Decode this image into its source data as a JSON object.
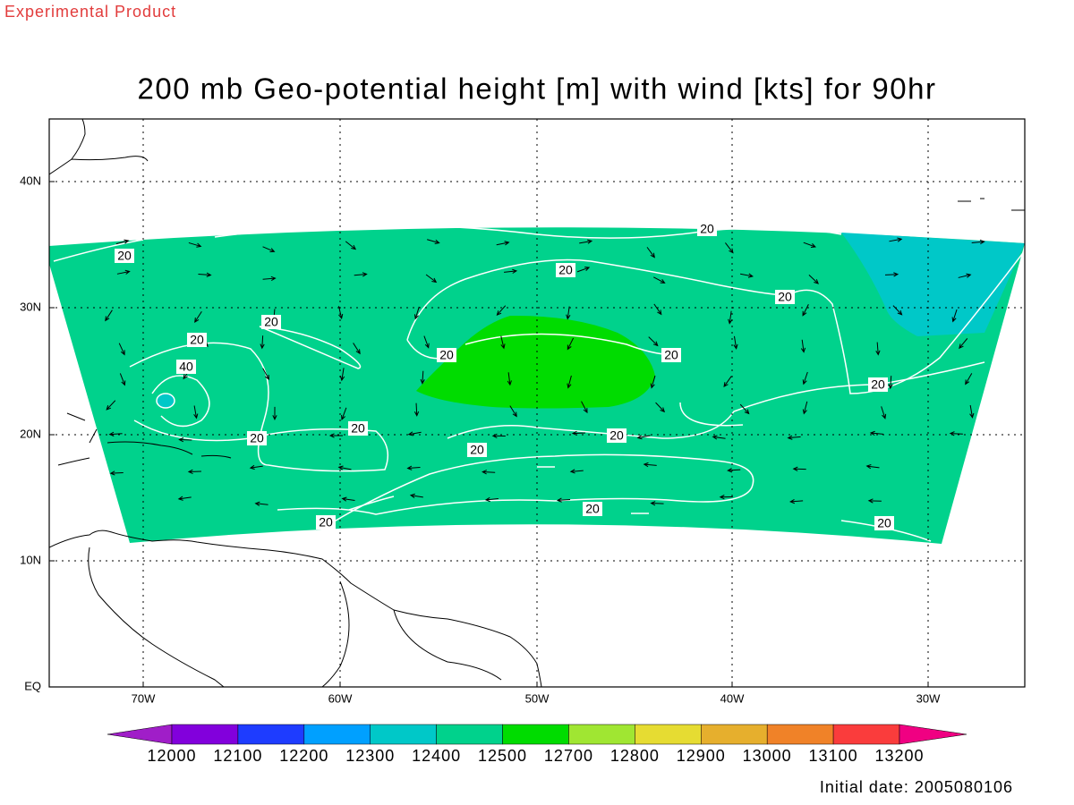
{
  "header": {
    "note": "Experimental Product",
    "title": "200 mb Geo-potential height [m] with wind [kts] for 90hr"
  },
  "map": {
    "lon_ticks": [
      "70W",
      "60W",
      "50W",
      "40W",
      "30W"
    ],
    "lat_ticks": [
      "EQ",
      "10N",
      "20N",
      "30N",
      "40N"
    ],
    "contour_labels": [
      "20",
      "20",
      "20",
      "20",
      "20",
      "20",
      "40",
      "20",
      "20",
      "20",
      "20",
      "20",
      "20",
      "20",
      "20",
      "20",
      "20"
    ]
  },
  "colorbar": {
    "levels": [
      12000,
      12100,
      12200,
      12300,
      12400,
      12500,
      12700,
      12800,
      12900,
      13000,
      13100,
      13200
    ],
    "colors": [
      "#a01ec8",
      "#8200dc",
      "#1e3cff",
      "#00a0ff",
      "#00c8c8",
      "#00d28c",
      "#00dc00",
      "#a0e632",
      "#e6dc32",
      "#e6af2d",
      "#f08228",
      "#fa3c3c",
      "#f00082"
    ]
  },
  "footer": {
    "initial_date": "Initial date: 2005080106"
  }
}
